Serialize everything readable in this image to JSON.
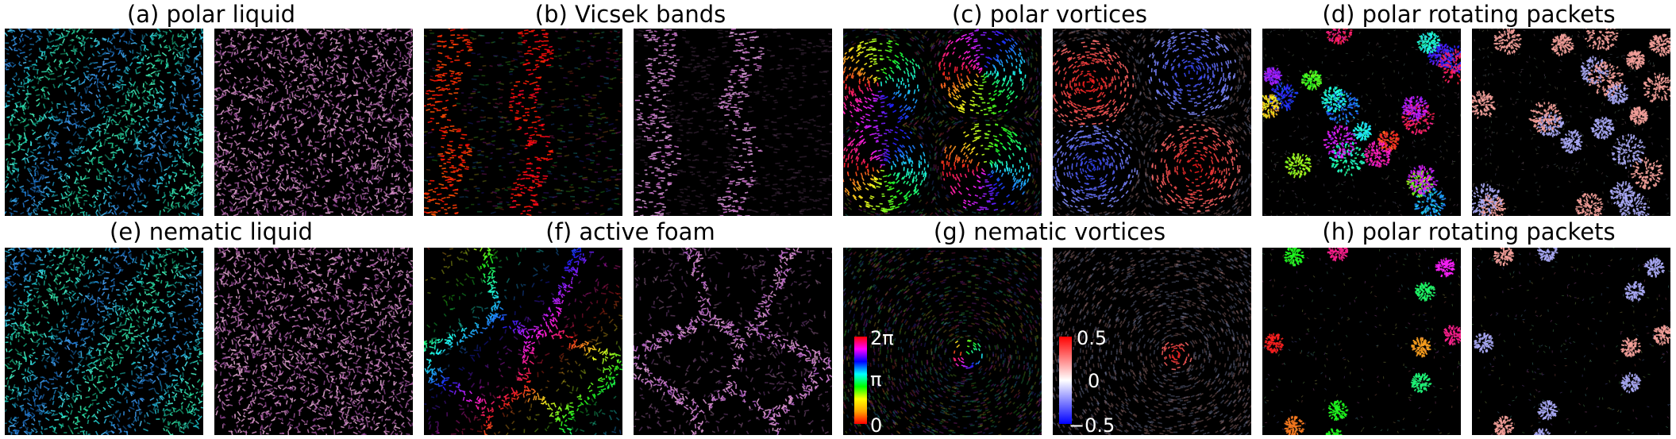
{
  "panels": [
    {
      "id": "a",
      "title": "(a) polar liquid"
    },
    {
      "id": "b",
      "title": "(b) Vicsek bands"
    },
    {
      "id": "c",
      "title": "(c) polar vortices"
    },
    {
      "id": "d",
      "title": "(d) polar rotating packets"
    },
    {
      "id": "e",
      "title": "(e) nematic liquid"
    },
    {
      "id": "f",
      "title": "(f) active foam"
    },
    {
      "id": "g",
      "title": "(g) nematic vortices"
    },
    {
      "id": "h",
      "title": "(h) polar rotating packets"
    }
  ],
  "colorbars": {
    "phase": {
      "top": "2π",
      "mid": "π",
      "bottom": "0"
    },
    "vorticity": {
      "top": "0.5",
      "mid": "0",
      "bottom": "−0.5"
    }
  },
  "icons": [
    "phase-colorbar",
    "vorticity-colorbar"
  ]
}
